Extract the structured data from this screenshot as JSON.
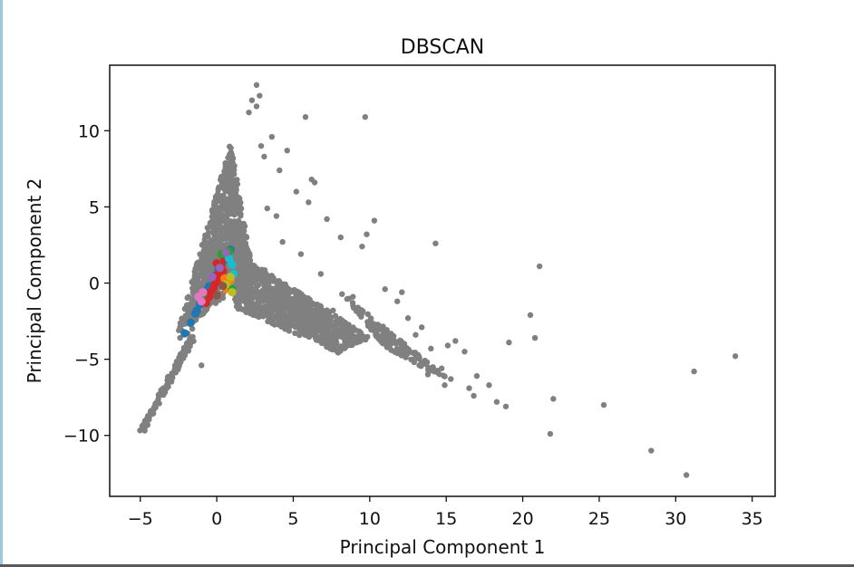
{
  "chart_data": {
    "type": "scatter",
    "title": "DBSCAN",
    "xlabel": "Principal Component 1",
    "ylabel": "Principal Component 2",
    "xlim": [
      -7,
      36.5
    ],
    "ylim": [
      -14,
      14.3
    ],
    "xticks": [
      -5,
      0,
      5,
      10,
      15,
      20,
      25,
      30,
      35
    ],
    "yticks": [
      -10,
      -5,
      0,
      5,
      10
    ],
    "ytick_labels": [
      "−10",
      "−5",
      "0",
      "5",
      "10"
    ],
    "xtick_labels": [
      "−5",
      "0",
      "5",
      "10",
      "15",
      "20",
      "25",
      "30",
      "35"
    ],
    "grid": false,
    "legend": "none",
    "series": [
      {
        "color": "#808080",
        "role": "noise",
        "x": [
          2.6,
          2.8,
          2.3,
          2.6,
          2.1,
          5.8,
          9.7,
          3.6,
          4.6,
          6.4,
          2.9,
          3.1,
          4.1,
          5.2,
          6.0,
          7.2,
          8.1,
          9.5,
          9.8,
          10.3,
          11.0,
          12.1,
          13.4,
          14.3,
          14.0,
          15.1,
          15.6,
          16.2,
          17.0,
          18.3,
          18.9,
          19.1,
          20.5,
          20.8,
          21.1,
          22.0,
          21.8,
          25.3,
          28.4,
          30.7,
          31.2,
          33.9,
          11.8,
          12.5,
          13.0,
          14.7,
          15.3,
          16.5,
          8.9,
          7.6,
          10.8,
          12.9,
          17.8,
          6.8,
          5.5,
          4.3,
          9.1,
          11.4,
          13.8,
          1.7,
          1.9,
          3.3,
          8.4,
          7.7,
          -1.6,
          -1.9,
          -1.0,
          -2.4,
          -4.6,
          -4.8,
          -2.3,
          -2.1,
          3.9,
          6.2,
          14.9,
          16.8
        ],
        "y": [
          13.0,
          12.3,
          12.0,
          11.6,
          11.2,
          10.9,
          10.9,
          9.6,
          8.7,
          6.6,
          9.0,
          8.3,
          7.4,
          6.0,
          5.3,
          4.2,
          3.0,
          2.4,
          3.2,
          4.1,
          -0.4,
          -0.6,
          -2.9,
          2.6,
          -4.3,
          -4.1,
          -3.8,
          -4.5,
          -6.1,
          -7.8,
          -8.1,
          -3.9,
          -2.1,
          -3.6,
          1.1,
          -7.6,
          -9.9,
          -8.0,
          -11.0,
          -12.6,
          -5.8,
          -4.8,
          -1.2,
          -2.3,
          -3.4,
          -5.6,
          -6.3,
          -6.9,
          -0.9,
          -1.8,
          -2.9,
          -5.2,
          -6.7,
          0.6,
          1.9,
          2.7,
          -3.1,
          -4.4,
          -6.0,
          2.4,
          1.8,
          4.9,
          -2.6,
          -3.4,
          -3.0,
          -3.3,
          -5.4,
          -3.6,
          -9.0,
          -9.6,
          -3.1,
          -2.4,
          4.4,
          6.8,
          -6.7,
          -7.4
        ],
        "cloud_regions": [
          {
            "shape": "wedge",
            "points": [
              [
                -2.6,
                -3.4
              ],
              [
                0.9,
                9.2
              ],
              [
                2.4,
                0.6
              ]
            ],
            "density": "dense"
          },
          {
            "shape": "wedge",
            "points": [
              [
                0.8,
                2.4
              ],
              [
                10.0,
                -3.6
              ],
              [
                8.0,
                -4.6
              ],
              [
                1.2,
                -1.6
              ]
            ],
            "density": "dense"
          },
          {
            "shape": "line",
            "points": [
              [
                -4.9,
                -9.7
              ],
              [
                -1.6,
                -3.6
              ]
            ],
            "density": "dense"
          },
          {
            "shape": "wedge",
            "points": [
              [
                8.0,
                -0.5
              ],
              [
                15.5,
                -6.6
              ],
              [
                11.0,
                -4.2
              ]
            ],
            "density": "sparse"
          }
        ]
      },
      {
        "color": "#1f77b4",
        "role": "cluster",
        "x": [
          -2.1,
          -1.7,
          -1.4,
          -1.1,
          -0.8,
          -0.5,
          -0.1,
          0.3,
          0.7,
          0.9,
          -1.3,
          -0.6,
          0.1,
          0.5
        ],
        "y": [
          -3.3,
          -2.6,
          -2.0,
          -1.4,
          -0.8,
          -0.2,
          0.5,
          1.2,
          1.8,
          2.2,
          -1.8,
          -0.4,
          0.9,
          1.5
        ]
      },
      {
        "color": "#d62728",
        "role": "cluster",
        "x": [
          -0.7,
          -0.4,
          -0.1,
          0.1,
          0.3,
          0.5,
          0.6,
          -0.2,
          0.2,
          0.0,
          -0.5,
          0.4
        ],
        "y": [
          -1.3,
          -0.6,
          0.0,
          0.6,
          1.1,
          1.6,
          1.9,
          -0.3,
          0.3,
          1.3,
          -0.9,
          0.8
        ]
      },
      {
        "color": "#17becf",
        "role": "cluster",
        "x": [
          0.8,
          1.0,
          1.1,
          0.9,
          0.7
        ],
        "y": [
          1.6,
          1.2,
          0.6,
          0.1,
          1.9
        ]
      },
      {
        "color": "#ff7f0e",
        "role": "cluster",
        "x": [
          0.5,
          0.7,
          0.9,
          0.6
        ],
        "y": [
          0.3,
          -0.1,
          0.2,
          -0.4
        ]
      },
      {
        "color": "#2ca02c",
        "role": "cluster",
        "x": [
          0.3,
          0.8,
          1.0,
          -0.9
        ],
        "y": [
          1.9,
          2.1,
          -0.4,
          -0.7
        ]
      },
      {
        "color": "#e377c2",
        "role": "cluster",
        "x": [
          -1.2,
          -1.0,
          -0.9
        ],
        "y": [
          -0.9,
          -1.2,
          -0.6
        ]
      },
      {
        "color": "#9467bd",
        "role": "cluster",
        "x": [
          -0.3,
          0.2,
          0.6
        ],
        "y": [
          0.4,
          1.0,
          2.0
        ]
      },
      {
        "color": "#bcbd22",
        "role": "cluster",
        "x": [
          0.6,
          0.9,
          1.0
        ],
        "y": [
          -0.1,
          0.4,
          -0.6
        ]
      },
      {
        "color": "#8c564b",
        "role": "cluster",
        "x": [
          0.0,
          0.4
        ],
        "y": [
          -0.8,
          -0.2
        ]
      }
    ]
  }
}
